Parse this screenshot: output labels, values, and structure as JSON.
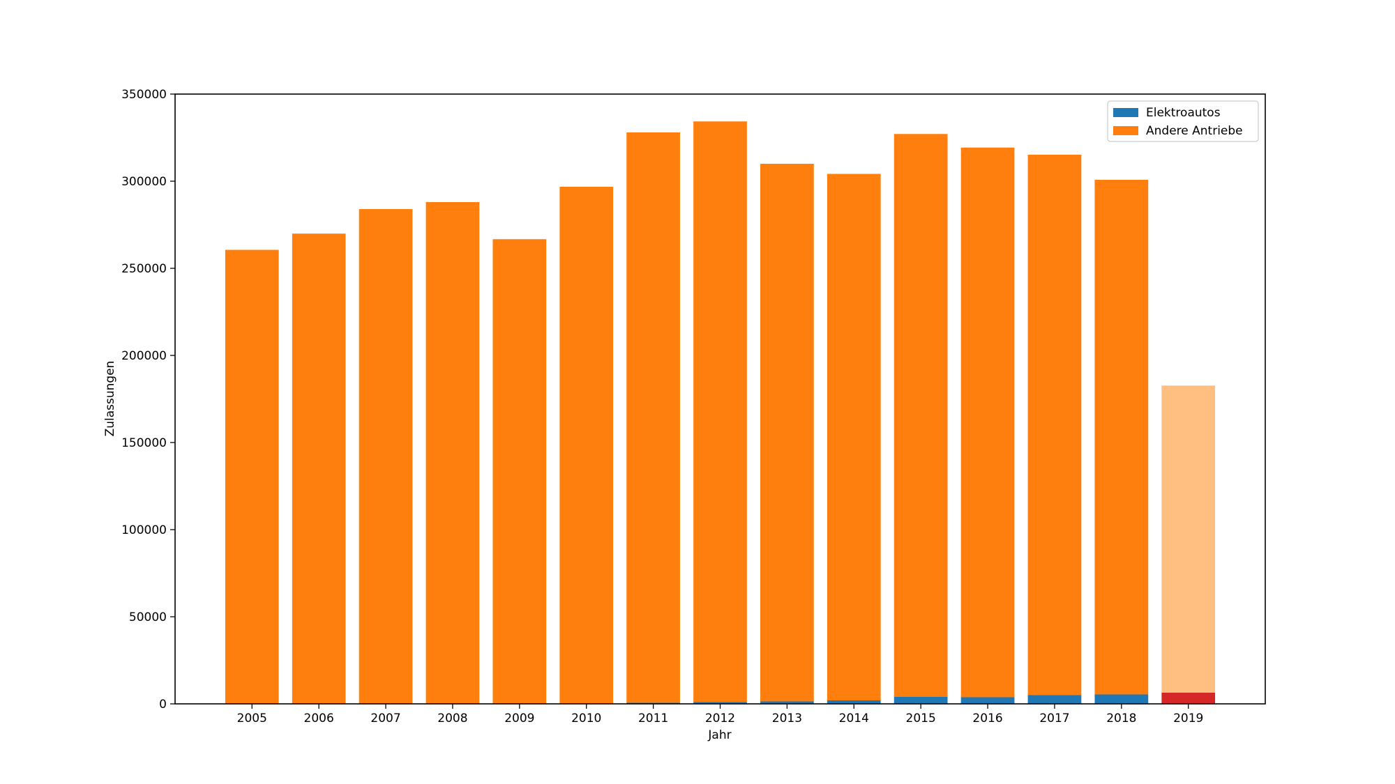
{
  "chart_data": {
    "type": "bar",
    "stacked": true,
    "title": "",
    "xlabel": "Jahr",
    "ylabel": "Zulassungen",
    "ylim": [
      0,
      350000
    ],
    "yticks": [
      0,
      50000,
      100000,
      150000,
      200000,
      250000,
      300000,
      350000
    ],
    "categories": [
      "2005",
      "2006",
      "2007",
      "2008",
      "2009",
      "2010",
      "2011",
      "2012",
      "2013",
      "2014",
      "2015",
      "2016",
      "2017",
      "2018",
      "2019"
    ],
    "series": [
      {
        "name": "Elektroautos",
        "color": "#1f77b4",
        "values": [
          50,
          80,
          100,
          150,
          200,
          300,
          600,
          1000,
          1400,
          2000,
          4000,
          3800,
          5000,
          5400,
          6400
        ]
      },
      {
        "name": "Andere Antriebe",
        "color": "#ff7f0e",
        "values": [
          260550,
          269820,
          283900,
          287850,
          266500,
          296500,
          327400,
          333300,
          308600,
          302200,
          323100,
          315500,
          310200,
          295400,
          176300
        ]
      }
    ],
    "highlight": {
      "category": "2019",
      "colors": {
        "Elektroautos": "#d62728",
        "Andere Antriebe": "#ffbf80"
      }
    },
    "legend_position": "top-right",
    "grid": false
  }
}
